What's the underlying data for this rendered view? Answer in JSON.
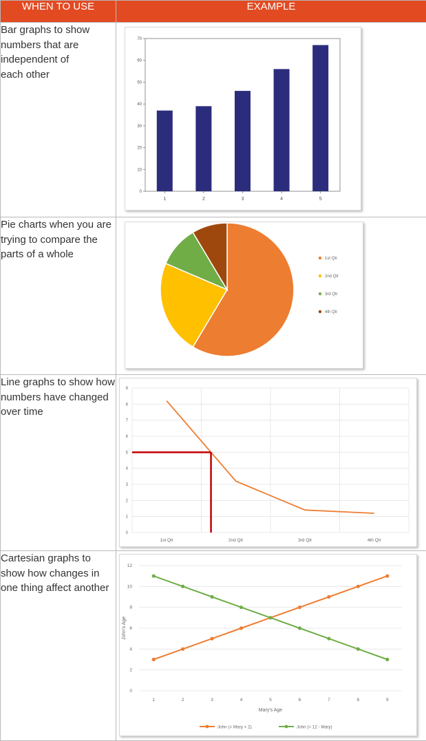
{
  "header": {
    "col1": "WHEN TO USE",
    "col2": "EXAMPLE"
  },
  "rows": [
    {
      "description": [
        "Bar graphs to show",
        "numbers that are",
        "independent of",
        "each other"
      ]
    },
    {
      "description": [
        "Pie charts when you are",
        "trying to compare the",
        "parts of a whole"
      ]
    },
    {
      "description": [
        "Line graphs to show how",
        "numbers have changed",
        "over time"
      ]
    },
    {
      "description": [
        "Cartesian graphs to",
        "show how changes in",
        "one thing affect another"
      ]
    }
  ],
  "colors": {
    "header_bg": "#e24a22",
    "bar": "#2b2d7c",
    "pie": [
      "#ed7d31",
      "#ffc000",
      "#70ad47",
      "#9e480e"
    ],
    "line": "#ed7d31",
    "marker": "#c00000",
    "series1": "#ed7d31",
    "series2": "#70ad47"
  },
  "chart_data": [
    {
      "type": "bar",
      "categories": [
        "1",
        "2",
        "3",
        "4",
        "5"
      ],
      "values": [
        37,
        39,
        46,
        56,
        67
      ],
      "ylim": [
        0,
        70
      ],
      "yticks": [
        "0",
        "10",
        "20",
        "30",
        "40",
        "50",
        "60",
        "70"
      ],
      "grid": false
    },
    {
      "type": "pie",
      "categories": [
        "1st Qtr",
        "2nd Qtr",
        "3rd Qtr",
        "4th Qtr"
      ],
      "values": [
        8.2,
        3.2,
        1.4,
        1.2
      ],
      "legend": "right"
    },
    {
      "type": "line",
      "categories": [
        "1st Qtr",
        "2nd Qtr",
        "3rd Qtr",
        "4th Qtr"
      ],
      "values": [
        8.2,
        3.2,
        1.4,
        1.2
      ],
      "ylim": [
        0,
        9
      ],
      "yticks": [
        "0",
        "1",
        "2",
        "3",
        "4",
        "5",
        "6",
        "7",
        "8",
        "9"
      ],
      "marker_value": 5,
      "grid": true
    },
    {
      "type": "line",
      "x": [
        1,
        2,
        3,
        4,
        5,
        6,
        7,
        8,
        9
      ],
      "series": [
        {
          "name": "John (= Mary + 2)",
          "values": [
            3,
            4,
            5,
            6,
            7,
            8,
            9,
            10,
            11
          ]
        },
        {
          "name": "John (= 12 - Mary)",
          "values": [
            11,
            10,
            9,
            8,
            7,
            6,
            5,
            4,
            3
          ]
        }
      ],
      "xlabel": "Mary's Age",
      "ylabel": "John's Age",
      "ylim": [
        0,
        12
      ],
      "yticks": [
        "0",
        "2",
        "4",
        "6",
        "8",
        "10",
        "12"
      ],
      "xticks": [
        "1",
        "2",
        "3",
        "4",
        "5",
        "6",
        "7",
        "8",
        "9"
      ],
      "legend": "bottom",
      "grid": true
    }
  ]
}
